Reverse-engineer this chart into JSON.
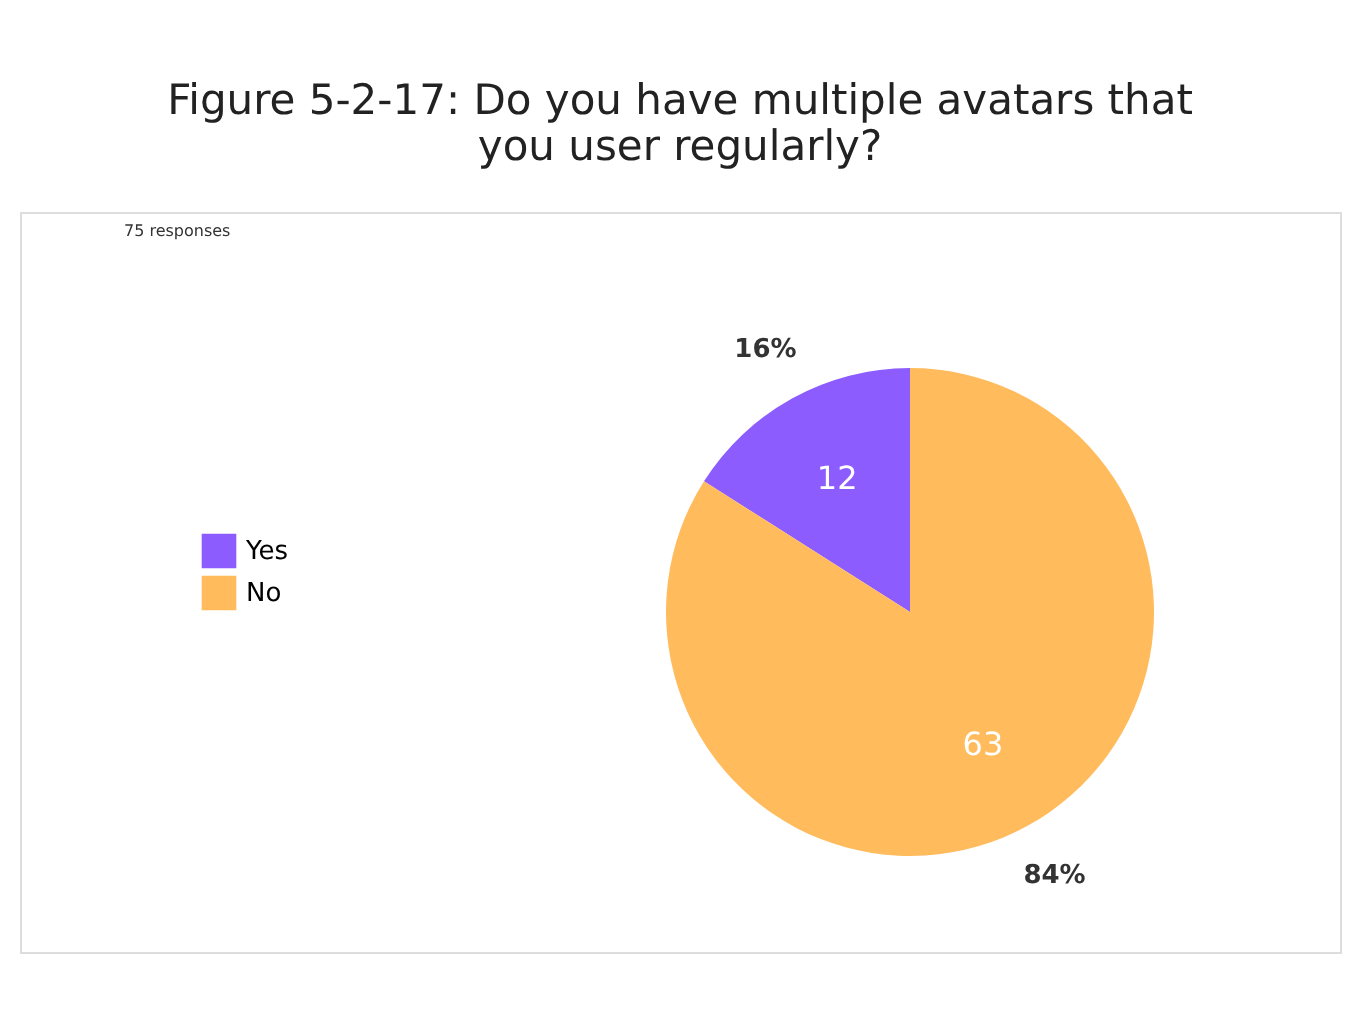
{
  "chart_data": {
    "type": "pie",
    "title": [
      "Figure 5-2-17: Do you have multiple avatars that",
      "you user regularly?"
    ],
    "annotations": [
      "75 responses",
      {
        "text": "12",
        "x": "Yes"
      },
      {
        "text": "63",
        "x": "No"
      }
    ],
    "categories": [
      "Yes",
      "No"
    ],
    "values": [
      16,
      84
    ],
    "colors": [
      "#8c5cff",
      "#ffbb5c"
    ],
    "value_labels": [
      "16%",
      "84%"
    ],
    "legend": "left"
  }
}
